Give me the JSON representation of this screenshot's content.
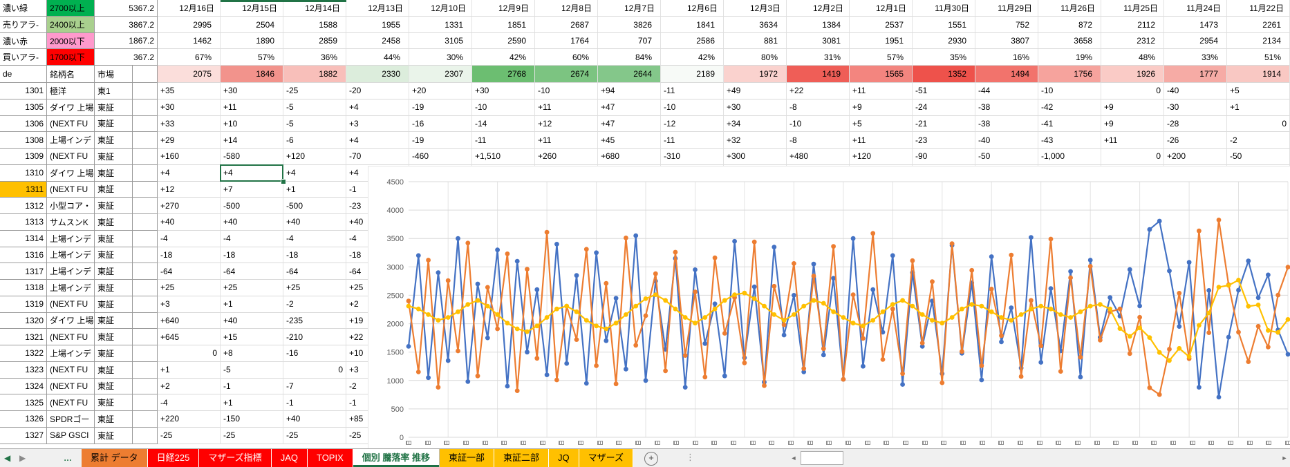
{
  "legend_rows": [
    {
      "label": "濃い緑",
      "range": "2700以上",
      "value": "5367.2",
      "bg": "#00B050"
    },
    {
      "label": "売りアラ-",
      "range": "2400以上",
      "value": "3867.2",
      "bg": "#A9D08E"
    },
    {
      "label": "濃い赤",
      "range": "2000以下",
      "value": "1867.2",
      "bg": "#FF99CC"
    },
    {
      "label": "買いアラ-",
      "range": "1700以下",
      "value": "367.2",
      "bg": "#FF0000"
    }
  ],
  "dates": [
    "12月16日",
    "12月15日",
    "12月14日",
    "12月13日",
    "12月10日",
    "12月9日",
    "12月8日",
    "12月7日",
    "12月6日",
    "12月3日",
    "12月2日",
    "12月1日",
    "11月30日",
    "11月29日",
    "11月26日",
    "11月25日",
    "11月24日",
    "11月22日"
  ],
  "header_series": {
    "sell_row": [
      "2995",
      "2504",
      "1588",
      "1955",
      "1331",
      "1851",
      "2687",
      "3826",
      "1841",
      "3634",
      "1384",
      "2537",
      "1551",
      "752",
      "872",
      "2112",
      "1473",
      "2261"
    ],
    "buy_row": [
      "1462",
      "1890",
      "2859",
      "2458",
      "3105",
      "2590",
      "1764",
      "707",
      "2586",
      "881",
      "3081",
      "1951",
      "2930",
      "3807",
      "3658",
      "2312",
      "2954",
      "2134"
    ],
    "percent_row": [
      "67%",
      "57%",
      "36%",
      "44%",
      "30%",
      "42%",
      "60%",
      "84%",
      "42%",
      "80%",
      "31%",
      "57%",
      "35%",
      "16%",
      "19%",
      "48%",
      "33%",
      "51%"
    ]
  },
  "row5": {
    "col_a": "de",
    "col_b": "銘柄名",
    "col_c": "市場",
    "values": [
      "2075",
      "1846",
      "1882",
      "2330",
      "2307",
      "2768",
      "2674",
      "2644",
      "2189",
      "1972",
      "1419",
      "1565",
      "1352",
      "1494",
      "1756",
      "1926",
      "1777",
      "1914"
    ],
    "colors": [
      "#FBDEDB",
      "#F2938C",
      "#F8BFBA",
      "#DCEDDC",
      "#EAF4EA",
      "#6CBE71",
      "#7CC481",
      "#84C78A",
      "#F7FAF7",
      "#FAD2CE",
      "#EF5E57",
      "#F3857F",
      "#EE524B",
      "#F2736C",
      "#F6A39D",
      "#FACBC6",
      "#F6ABA5",
      "#F9C8C3"
    ]
  },
  "stocks": [
    {
      "code": "1301",
      "name": "極洋",
      "market": "東1",
      "values": [
        "+35",
        "+30",
        "-25",
        "-20",
        "+20",
        "+30",
        "-10",
        "+94",
        "-11",
        "+49",
        "+22",
        "+11",
        "-51",
        "-44",
        "-10",
        "0",
        "-40",
        "+5"
      ]
    },
    {
      "code": "1305",
      "name": "ダイワ 上場",
      "market": "東証",
      "values": [
        "+30",
        "+11",
        "-5",
        "+4",
        "-19",
        "-10",
        "+11",
        "+47",
        "-10",
        "+30",
        "-8",
        "+9",
        "-24",
        "-38",
        "-42",
        "+9",
        "-30",
        "+1"
      ]
    },
    {
      "code": "1306",
      "name": "(NEXT FU",
      "market": "東証",
      "values": [
        "+33",
        "+10",
        "-5",
        "+3",
        "-16",
        "-14",
        "+12",
        "+47",
        "-12",
        "+34",
        "-10",
        "+5",
        "-21",
        "-38",
        "-41",
        "+9",
        "-28",
        "0"
      ]
    },
    {
      "code": "1308",
      "name": "上場インデ",
      "market": "東証",
      "values": [
        "+29",
        "+14",
        "-6",
        "+4",
        "-19",
        "-11",
        "+11",
        "+45",
        "-11",
        "+32",
        "-8",
        "+11",
        "-23",
        "-40",
        "-43",
        "+11",
        "-26",
        "-2"
      ]
    },
    {
      "code": "1309",
      "name": "(NEXT FU",
      "market": "東証",
      "values": [
        "+160",
        "-580",
        "+120",
        "-70",
        "-460",
        "+1,510",
        "+260",
        "+680",
        "-310",
        "+300",
        "+480",
        "+120",
        "-90",
        "-50",
        "-1,000",
        "0",
        "+200",
        "-50"
      ]
    },
    {
      "code": "1310",
      "name": "ダイワ 上場",
      "market": "東証",
      "values": [
        "+4",
        "+4",
        "+4",
        "+4"
      ]
    },
    {
      "code": "1311",
      "name": "(NEXT FU",
      "market": "東証",
      "values": [
        "+12",
        "+7",
        "+1",
        "-1"
      ]
    },
    {
      "code": "1312",
      "name": "小型コア・",
      "market": "東証",
      "values": [
        "+270",
        "-500",
        "-500",
        "-23"
      ]
    },
    {
      "code": "1313",
      "name": "サムスンK",
      "market": "東証",
      "values": [
        "+40",
        "+40",
        "+40",
        "+40"
      ]
    },
    {
      "code": "1314",
      "name": "上場インデ",
      "market": "東証",
      "values": [
        "-4",
        "-4",
        "-4",
        "-4"
      ]
    },
    {
      "code": "1316",
      "name": "上場インデ",
      "market": "東証",
      "values": [
        "-18",
        "-18",
        "-18",
        "-18"
      ]
    },
    {
      "code": "1317",
      "name": "上場インデ",
      "market": "東証",
      "values": [
        "-64",
        "-64",
        "-64",
        "-64"
      ]
    },
    {
      "code": "1318",
      "name": "上場インデ",
      "market": "東証",
      "values": [
        "+25",
        "+25",
        "+25",
        "+25"
      ]
    },
    {
      "code": "1319",
      "name": "(NEXT FU",
      "market": "東証",
      "values": [
        "+3",
        "+1",
        "-2",
        "+2"
      ]
    },
    {
      "code": "1320",
      "name": "ダイワ 上場",
      "market": "東証",
      "values": [
        "+640",
        "+40",
        "-235",
        "+19"
      ]
    },
    {
      "code": "1321",
      "name": "(NEXT FU",
      "market": "東証",
      "values": [
        "+645",
        "+15",
        "-210",
        "+22"
      ]
    },
    {
      "code": "1322",
      "name": "上場インデ",
      "market": "東証",
      "values": [
        "0",
        "+8",
        "-16",
        "+10"
      ]
    },
    {
      "code": "1323",
      "name": "(NEXT FU",
      "market": "東証",
      "values": [
        "+1",
        "-5",
        "0",
        "+3"
      ]
    },
    {
      "code": "1324",
      "name": "(NEXT FU",
      "market": "東証",
      "values": [
        "+2",
        "-1",
        "-7",
        "-2"
      ]
    },
    {
      "code": "1325",
      "name": "(NEXT FU",
      "market": "東証",
      "values": [
        "-4",
        "+1",
        "-1",
        "-1"
      ]
    },
    {
      "code": "1326",
      "name": "SPDRゴー",
      "market": "東証",
      "values": [
        "+220",
        "-150",
        "+40",
        "+85"
      ]
    },
    {
      "code": "1327",
      "name": "S&P GSCI",
      "market": "東証",
      "values": [
        "-25",
        "-25",
        "-25",
        "-25"
      ]
    }
  ],
  "highlight": {
    "highlight_code": "1311",
    "highlight_color": "#FFC000",
    "selected_code": "1310",
    "selected_value_index": 1,
    "selection_accent": "#217346"
  },
  "chart_data": {
    "type": "line",
    "title": "",
    "xlabel": "",
    "ylabel": "",
    "ylim": [
      0,
      4500
    ],
    "yticks": [
      "0",
      "500",
      "1000",
      "1500",
      "2000",
      "2500",
      "3000",
      "3500",
      "4000",
      "4500"
    ],
    "grid": true,
    "legend": "none",
    "x_tick_count": 47,
    "series": [
      {
        "name": "series-blue",
        "color": "#4472C4",
        "values": [
          1600,
          3200,
          1050,
          2900,
          1350,
          3500,
          980,
          2700,
          1750,
          3300,
          900,
          3100,
          1500,
          2600,
          1100,
          3400,
          1300,
          2850,
          950,
          3250,
          1700,
          2450,
          1200,
          3550,
          1000,
          2750,
          1550,
          3150,
          880,
          2950,
          1650,
          2350,
          1080,
          3450,
          1400,
          2650,
          970,
          3350,
          1800,
          2500,
          1150,
          3050,
          1450,
          2800,
          1020,
          3500,
          1250,
          2600,
          1850,
          3200,
          930,
          2900,
          1600,
          2400,
          1120,
          3380,
          1480,
          2720,
          1010,
          3180,
          1680,
          2280,
          1220,
          3520,
          1320,
          2620,
          1520,
          2920,
          1060,
          3120,
          1760,
          2460,
          2134,
          2954,
          2312,
          3658,
          3807,
          2930,
          1951,
          3081,
          881,
          2586,
          707,
          1764,
          2590,
          3105,
          2458,
          2859,
          1890,
          1462
        ]
      },
      {
        "name": "series-orange",
        "color": "#ED7D31",
        "values": [
          2400,
          1150,
          3120,
          880,
          2760,
          1520,
          3420,
          1080,
          2640,
          1910,
          3230,
          820,
          2960,
          1390,
          3610,
          1010,
          2310,
          1720,
          3310,
          1260,
          2710,
          940,
          3510,
          1620,
          2140,
          2880,
          1170,
          3260,
          1440,
          2560,
          1060,
          3160,
          1830,
          2460,
          1310,
          3440,
          910,
          2660,
          1980,
          3060,
          1210,
          2840,
          1560,
          3360,
          1020,
          2510,
          1740,
          3590,
          1370,
          2260,
          1120,
          3110,
          1660,
          2740,
          960,
          3410,
          1510,
          2940,
          1260,
          2610,
          1790,
          3210,
          1070,
          2410,
          1610,
          3490,
          1160,
          2810,
          1410,
          3010,
          1710,
          2210,
          2261,
          1473,
          2112,
          872,
          752,
          1551,
          2537,
          1384,
          3634,
          1841,
          3826,
          2687,
          1851,
          1331,
          1955,
          1588,
          2504,
          2995
        ]
      },
      {
        "name": "series-yellow",
        "color": "#FFC000",
        "values": [
          2310,
          2260,
          2160,
          2060,
          2110,
          2210,
          2340,
          2410,
          2310,
          2160,
          2010,
          1910,
          1860,
          1960,
          2110,
          2260,
          2310,
          2210,
          2060,
          1960,
          1910,
          2010,
          2160,
          2310,
          2440,
          2510,
          2410,
          2260,
          2110,
          2010,
          2110,
          2260,
          2410,
          2510,
          2540,
          2440,
          2310,
          2160,
          2060,
          2160,
          2310,
          2410,
          2360,
          2210,
          2110,
          2010,
          1960,
          2060,
          2210,
          2340,
          2410,
          2310,
          2160,
          2060,
          2010,
          2110,
          2260,
          2340,
          2310,
          2210,
          2110,
          2060,
          2160,
          2260,
          2310,
          2260,
          2160,
          2110,
          2210,
          2310,
          2340,
          2260,
          1914,
          1777,
          1926,
          1756,
          1494,
          1352,
          1565,
          1419,
          1972,
          2189,
          2644,
          2674,
          2768,
          2307,
          2330,
          1882,
          1846,
          2075
        ]
      }
    ]
  },
  "tab_bar": {
    "nav_back": "◀",
    "nav_forward": "▶",
    "nav_more": "…",
    "tabs": [
      {
        "label": "累計 データ",
        "bg": "#ED7D31",
        "fg": "#000000",
        "active": false
      },
      {
        "label": "日経225",
        "bg": "#FF0000",
        "fg": "#FFFFFF",
        "active": false
      },
      {
        "label": "マザーズ指標",
        "bg": "#FF0000",
        "fg": "#FFFFFF",
        "active": false
      },
      {
        "label": "JAQ",
        "bg": "#FF0000",
        "fg": "#FFFFFF",
        "active": false
      },
      {
        "label": "TOPIX",
        "bg": "#FF0000",
        "fg": "#FFFFFF",
        "active": false
      },
      {
        "label": "個別 騰落率 推移",
        "bg": "#FFFFFF",
        "fg": "#217346",
        "active": true
      },
      {
        "label": "東証一部",
        "bg": "#FFC000",
        "fg": "#000000",
        "active": false
      },
      {
        "label": "東証二部",
        "bg": "#FFC000",
        "fg": "#000000",
        "active": false
      },
      {
        "label": "JQ",
        "bg": "#FFC000",
        "fg": "#000000",
        "active": false
      },
      {
        "label": "マザーズ",
        "bg": "#FFC000",
        "fg": "#000000",
        "active": false
      }
    ],
    "add_label": "+",
    "scroll_left": "◄",
    "scroll_right": "►"
  }
}
